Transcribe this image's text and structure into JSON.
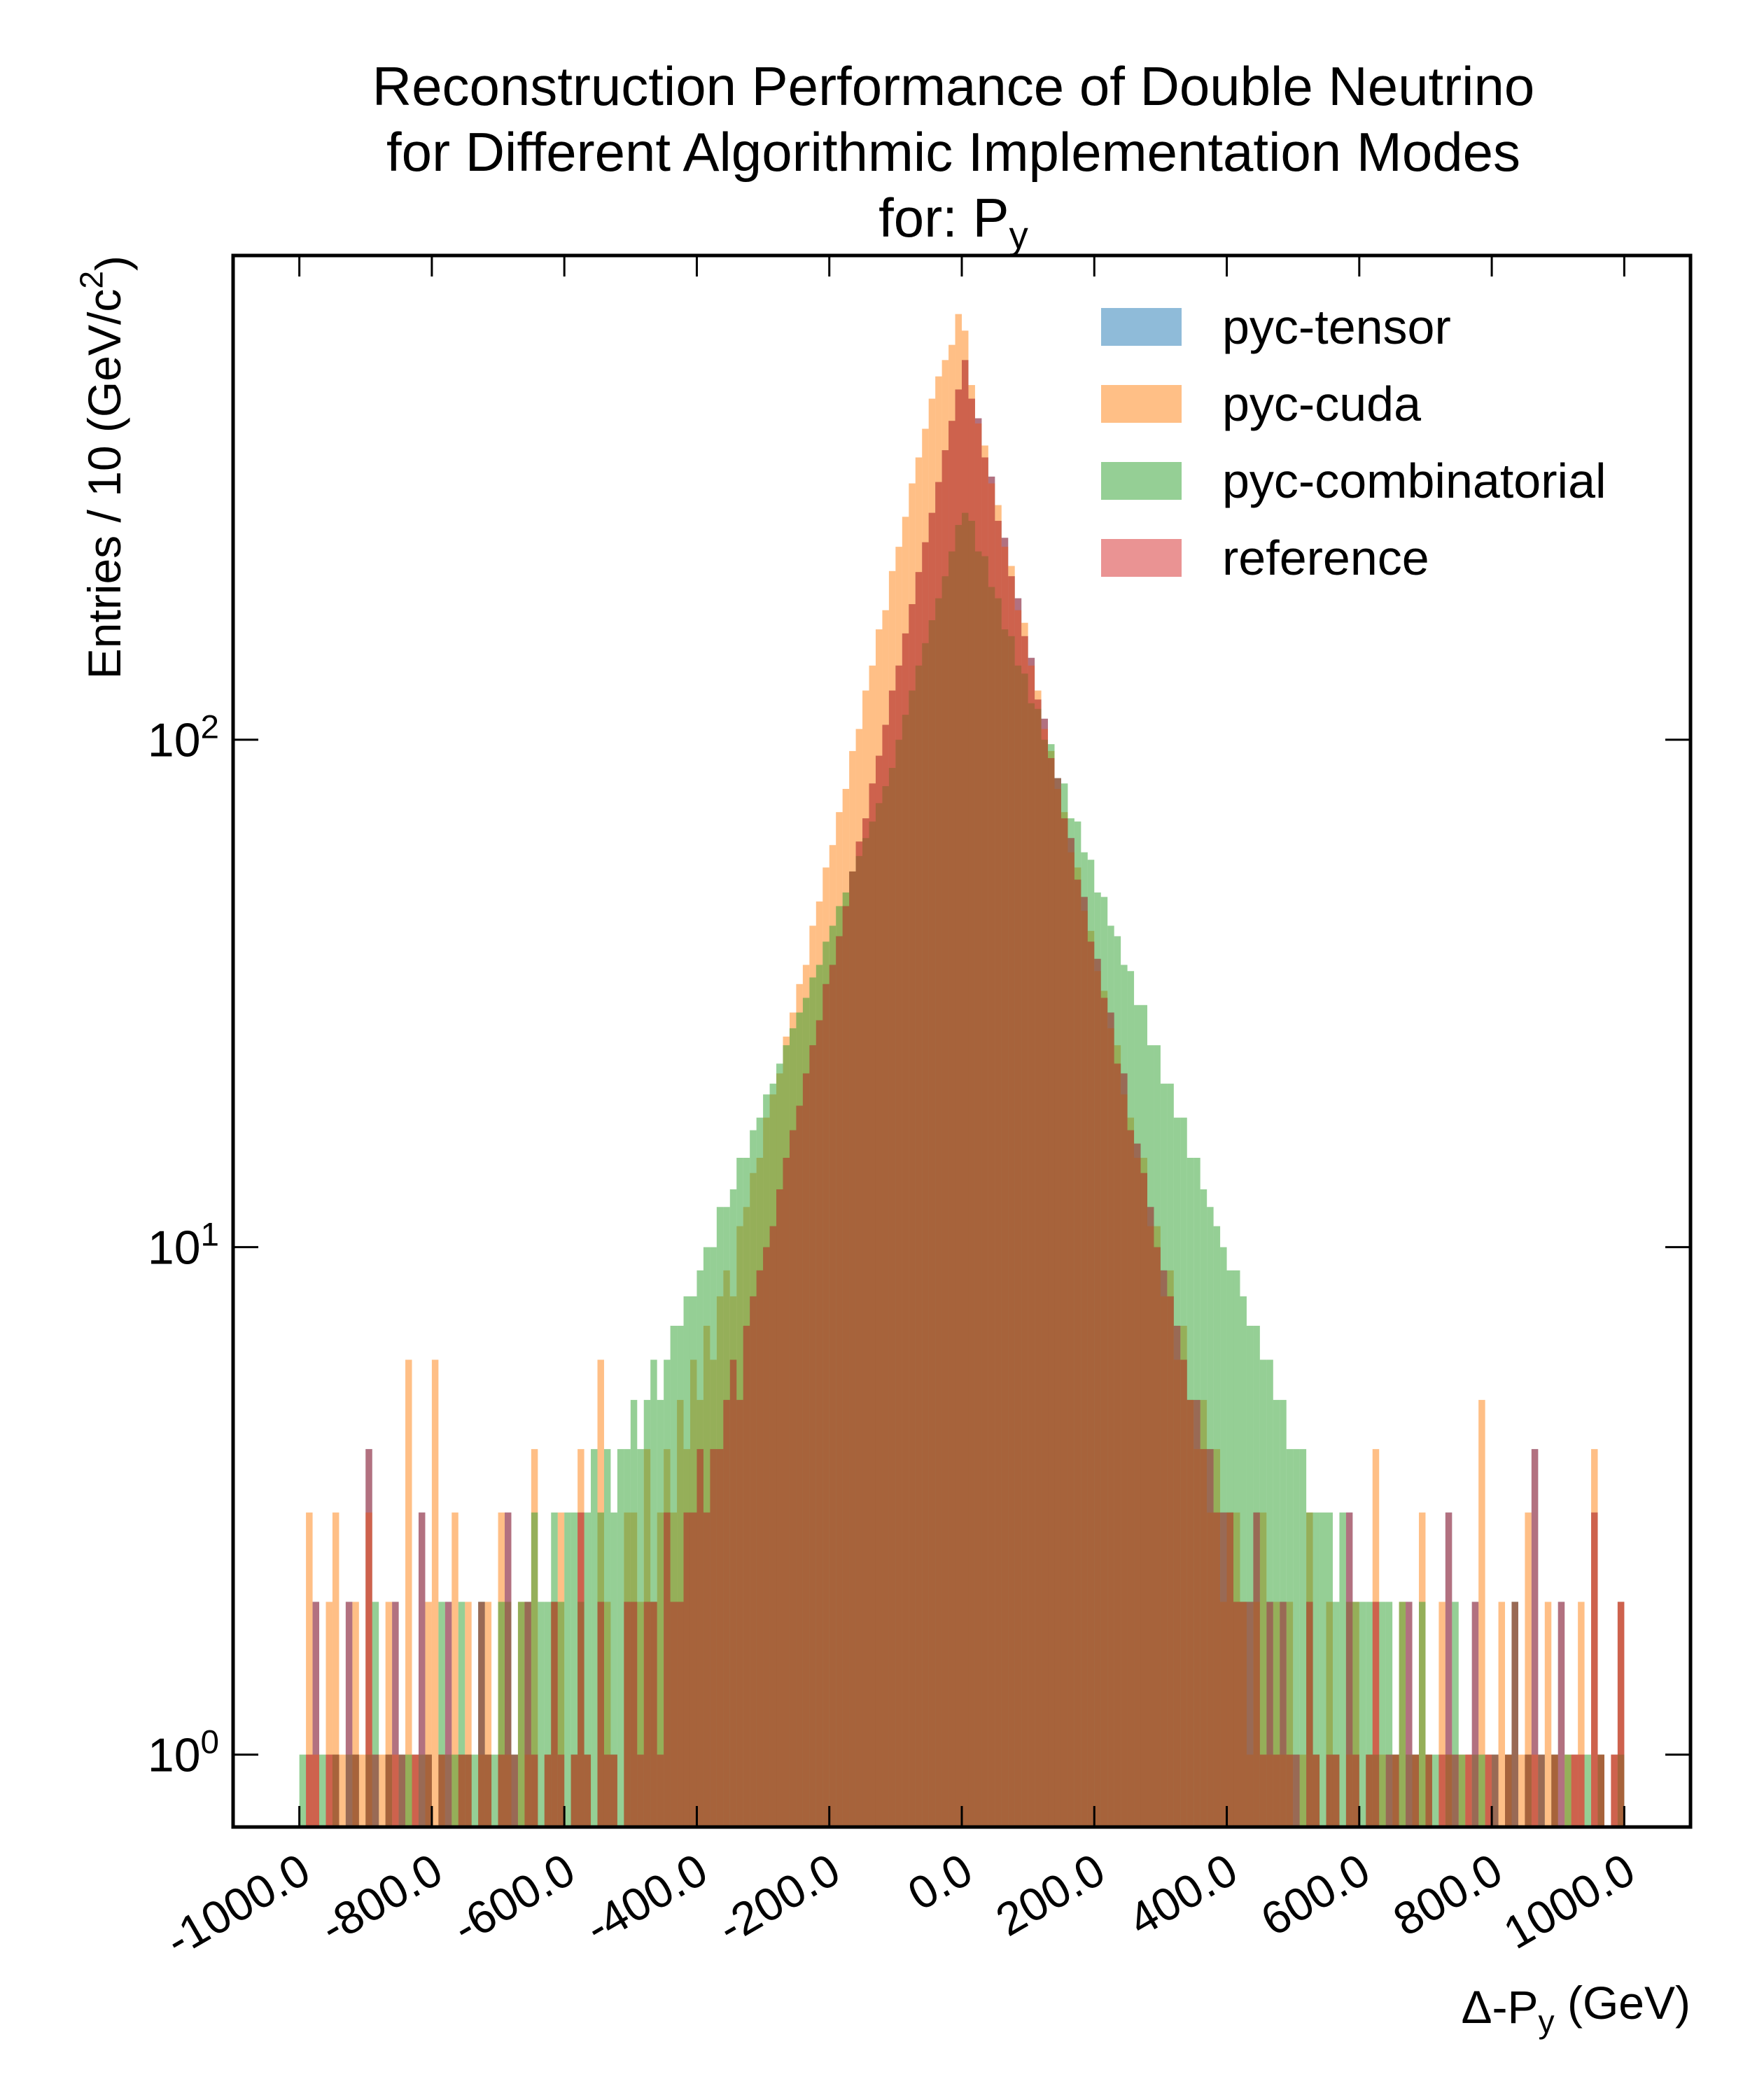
{
  "chart_data": {
    "type": "histogram",
    "title": [
      "Reconstruction Performance of Double Neutrino",
      "for Different Algorithmic Implementation Modes",
      "for: P_y"
    ],
    "xlabel": "Δ-P_y (GeV)",
    "ylabel": "Entries  / 10 (GeV/c^2)",
    "yscale": "log",
    "legend": "upper right",
    "xlim": [
      -1100,
      1100
    ],
    "ylim": [
      0.72,
      900
    ],
    "xticks": [
      {
        "value": -1000,
        "label": "-1000.0"
      },
      {
        "value": -800,
        "label": "-800.0"
      },
      {
        "value": -600,
        "label": "-600.0"
      },
      {
        "value": -400,
        "label": "-400.0"
      },
      {
        "value": -200,
        "label": "-200.0"
      },
      {
        "value": 0,
        "label": "0.0"
      },
      {
        "value": 200,
        "label": "200.0"
      },
      {
        "value": 400,
        "label": "400.0"
      },
      {
        "value": 600,
        "label": "600.0"
      },
      {
        "value": 800,
        "label": "800.0"
      },
      {
        "value": 1000,
        "label": "1000.0"
      }
    ],
    "yticks": [
      {
        "value": 1,
        "label": "10^0"
      },
      {
        "value": 10,
        "label": "10^1"
      },
      {
        "value": 100,
        "label": "10^2"
      }
    ],
    "bins": [
      -1000,
      -990,
      -980,
      -970,
      -960,
      -950,
      -940,
      -930,
      -920,
      -910,
      -900,
      -890,
      -880,
      -870,
      -860,
      -850,
      -840,
      -830,
      -820,
      -810,
      -800,
      -790,
      -780,
      -770,
      -760,
      -750,
      -740,
      -730,
      -720,
      -710,
      -700,
      -690,
      -680,
      -670,
      -660,
      -650,
      -640,
      -630,
      -620,
      -610,
      -600,
      -590,
      -580,
      -570,
      -560,
      -550,
      -540,
      -530,
      -520,
      -510,
      -500,
      -490,
      -480,
      -470,
      -460,
      -450,
      -440,
      -430,
      -420,
      -410,
      -400,
      -390,
      -380,
      -370,
      -360,
      -350,
      -340,
      -330,
      -320,
      -310,
      -300,
      -290,
      -280,
      -270,
      -260,
      -250,
      -240,
      -230,
      -220,
      -210,
      -200,
      -190,
      -180,
      -170,
      -160,
      -150,
      -140,
      -130,
      -120,
      -110,
      -100,
      -90,
      -80,
      -70,
      -60,
      -50,
      -40,
      -30,
      -20,
      -10,
      0,
      10,
      20,
      30,
      40,
      50,
      60,
      70,
      80,
      90,
      100,
      110,
      120,
      130,
      140,
      150,
      160,
      170,
      180,
      190,
      200,
      210,
      220,
      230,
      240,
      250,
      260,
      270,
      280,
      290,
      300,
      310,
      320,
      330,
      340,
      350,
      360,
      370,
      380,
      390,
      400,
      410,
      420,
      430,
      440,
      450,
      460,
      470,
      480,
      490,
      500,
      510,
      520,
      530,
      540,
      550,
      560,
      570,
      580,
      590,
      600,
      610,
      620,
      630,
      640,
      650,
      660,
      670,
      680,
      690,
      700,
      710,
      720,
      730,
      740,
      750,
      760,
      770,
      780,
      790,
      800,
      810,
      820,
      830,
      840,
      850,
      860,
      870,
      880,
      890,
      900,
      910,
      920,
      930,
      940,
      950,
      960,
      970,
      980,
      990,
      1000
    ],
    "series": [
      {
        "name": "pyc-tensor",
        "color": "#1f77b4",
        "values": [
          0,
          1,
          2,
          0,
          1,
          1,
          0,
          2,
          1,
          0,
          4,
          1,
          0,
          1,
          2,
          1,
          0,
          1,
          3,
          1,
          0,
          1,
          2,
          0,
          1,
          1,
          0,
          2,
          1,
          0,
          1,
          3,
          1,
          0,
          2,
          1,
          0,
          1,
          2,
          1,
          0,
          1,
          3,
          1,
          0,
          2,
          1,
          1,
          0,
          2,
          2,
          1,
          2,
          2,
          1,
          3,
          2,
          2,
          3,
          3,
          4,
          3,
          4,
          4,
          5,
          6,
          5,
          7,
          8,
          9,
          10,
          11,
          13,
          15,
          17,
          19,
          22,
          25,
          28,
          33,
          36,
          41,
          47,
          55,
          63,
          70,
          82,
          93,
          107,
          125,
          140,
          162,
          185,
          214,
          245,
          280,
          322,
          372,
          425,
          490,
          560,
          470,
          430,
          360,
          330,
          270,
          250,
          210,
          190,
          160,
          145,
          120,
          110,
          92,
          84,
          70,
          64,
          53,
          49,
          40,
          37,
          31,
          29,
          23,
          22,
          17,
          16,
          14,
          12,
          10,
          9,
          8,
          7,
          6,
          5,
          5,
          4,
          4,
          3,
          3,
          3,
          2,
          2,
          2,
          3,
          1,
          2,
          1,
          2,
          1,
          1,
          0,
          2,
          1,
          0,
          1,
          1,
          0,
          3,
          1,
          0,
          1,
          2,
          0,
          1,
          1,
          0,
          2,
          1,
          0,
          1,
          0,
          1,
          3,
          1,
          0,
          1,
          2,
          0,
          1,
          1,
          0,
          1,
          2,
          0,
          1,
          4,
          1,
          0,
          1,
          2,
          0,
          1,
          1,
          0,
          3,
          1,
          0,
          1,
          2
        ]
      },
      {
        "name": "pyc-cuda",
        "color": "#ff7f0e",
        "values": [
          0,
          3,
          1,
          0,
          2,
          3,
          1,
          0,
          2,
          1,
          3,
          0,
          1,
          2,
          1,
          0,
          6,
          1,
          0,
          2,
          6,
          1,
          0,
          3,
          1,
          2,
          0,
          1,
          2,
          0,
          3,
          1,
          0,
          2,
          1,
          4,
          0,
          1,
          2,
          3,
          0,
          1,
          4,
          1,
          0,
          6,
          2,
          1,
          0,
          3,
          3,
          2,
          4,
          2,
          3,
          4,
          3,
          5,
          4,
          6,
          5,
          7,
          6,
          8,
          9,
          8,
          11,
          12,
          14,
          15,
          18,
          20,
          22,
          26,
          29,
          33,
          36,
          43,
          48,
          56,
          62,
          72,
          80,
          95,
          105,
          125,
          140,
          165,
          180,
          215,
          240,
          275,
          320,
          360,
          410,
          470,
          520,
          560,
          600,
          690,
          640,
          500,
          420,
          380,
          320,
          290,
          240,
          220,
          180,
          170,
          140,
          125,
          105,
          95,
          80,
          72,
          60,
          56,
          46,
          42,
          35,
          32,
          27,
          25,
          20,
          18,
          15,
          15,
          11,
          11,
          8,
          9,
          6,
          7,
          5,
          4,
          5,
          3,
          4,
          2,
          3,
          3,
          2,
          1,
          2,
          3,
          1,
          2,
          1,
          2,
          0,
          1,
          3,
          1,
          0,
          2,
          1,
          0,
          1,
          2,
          0,
          1,
          4,
          1,
          0,
          1,
          2,
          0,
          1,
          3,
          1,
          0,
          2,
          1,
          0,
          1,
          1,
          0,
          5,
          1,
          0,
          2,
          1,
          0,
          1,
          3,
          1,
          0,
          2,
          1,
          0,
          1,
          1,
          2,
          0,
          4,
          1,
          0,
          1,
          2
        ]
      },
      {
        "name": "pyc-combinatorial",
        "color": "#2ca02c",
        "values": [
          1,
          0,
          0,
          1,
          0,
          1,
          0,
          1,
          1,
          0,
          1,
          2,
          0,
          1,
          0,
          1,
          1,
          0,
          1,
          1,
          0,
          2,
          1,
          1,
          2,
          1,
          1,
          2,
          1,
          1,
          2,
          2,
          1,
          2,
          2,
          3,
          2,
          2,
          3,
          2,
          3,
          3,
          2,
          3,
          4,
          3,
          4,
          3,
          4,
          4,
          5,
          4,
          5,
          6,
          5,
          6,
          7,
          7,
          8,
          8,
          9,
          10,
          10,
          12,
          12,
          13,
          15,
          15,
          17,
          18,
          20,
          21,
          23,
          25,
          27,
          29,
          31,
          34,
          36,
          40,
          43,
          47,
          50,
          55,
          59,
          64,
          69,
          75,
          81,
          88,
          100,
          112,
          125,
          140,
          155,
          172,
          190,
          210,
          235,
          265,
          280,
          270,
          235,
          230,
          200,
          190,
          165,
          160,
          140,
          135,
          118,
          115,
          100,
          98,
          84,
          82,
          70,
          69,
          60,
          58,
          50,
          49,
          43,
          41,
          36,
          35,
          30,
          30,
          25,
          25,
          21,
          21,
          18,
          18,
          15,
          15,
          13,
          12,
          11,
          10,
          9,
          9,
          8,
          7,
          7,
          6,
          6,
          5,
          5,
          4,
          4,
          4,
          3,
          3,
          3,
          3,
          2,
          3,
          2,
          2,
          2,
          2,
          1,
          2,
          2,
          1,
          2,
          1,
          1,
          2,
          1,
          1,
          0,
          1,
          2,
          1,
          0,
          1,
          1,
          0,
          1,
          0,
          1,
          2,
          0,
          1,
          0,
          1,
          0,
          1,
          0,
          1,
          0,
          0,
          1,
          0,
          1,
          0,
          0,
          1
        ]
      },
      {
        "name": "reference",
        "color": "#d62728",
        "values": [
          0,
          1,
          2,
          0,
          1,
          1,
          0,
          2,
          1,
          0,
          4,
          1,
          0,
          1,
          2,
          1,
          0,
          1,
          3,
          1,
          0,
          1,
          2,
          0,
          1,
          1,
          0,
          2,
          1,
          0,
          1,
          3,
          1,
          0,
          2,
          1,
          0,
          1,
          2,
          1,
          0,
          1,
          3,
          1,
          0,
          2,
          1,
          1,
          0,
          2,
          2,
          1,
          2,
          2,
          1,
          3,
          2,
          2,
          3,
          3,
          4,
          3,
          4,
          4,
          5,
          6,
          5,
          7,
          8,
          9,
          10,
          11,
          13,
          15,
          17,
          19,
          22,
          25,
          28,
          33,
          36,
          41,
          47,
          55,
          63,
          70,
          82,
          93,
          107,
          125,
          140,
          162,
          185,
          214,
          245,
          280,
          322,
          372,
          425,
          490,
          560,
          470,
          430,
          360,
          330,
          270,
          250,
          210,
          190,
          160,
          145,
          120,
          110,
          92,
          84,
          70,
          64,
          53,
          49,
          40,
          37,
          31,
          29,
          23,
          22,
          17,
          16,
          14,
          12,
          10,
          9,
          8,
          7,
          6,
          5,
          5,
          4,
          4,
          3,
          3,
          3,
          2,
          2,
          2,
          3,
          1,
          2,
          1,
          2,
          1,
          1,
          0,
          2,
          1,
          0,
          1,
          1,
          0,
          3,
          1,
          0,
          1,
          2,
          0,
          1,
          1,
          0,
          2,
          1,
          0,
          1,
          0,
          1,
          3,
          1,
          0,
          1,
          2,
          0,
          1,
          1,
          0,
          1,
          2,
          0,
          1,
          4,
          1,
          0,
          1,
          2,
          0,
          1,
          1,
          0,
          3,
          1,
          0,
          1,
          2
        ]
      }
    ]
  }
}
